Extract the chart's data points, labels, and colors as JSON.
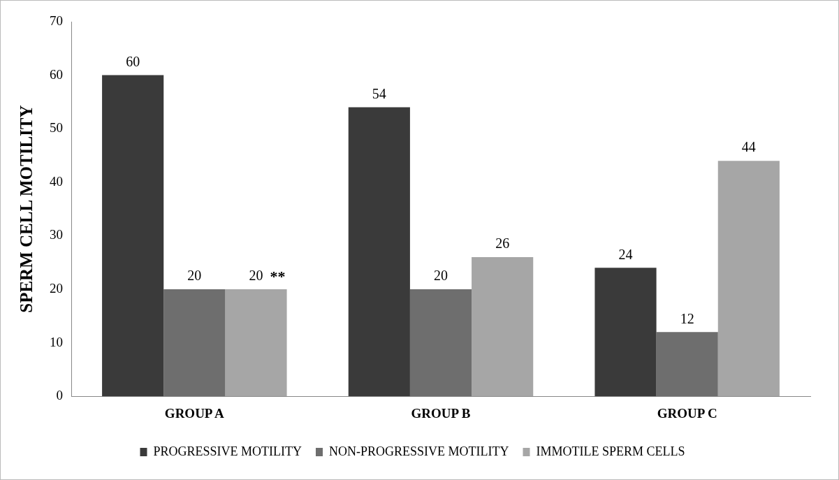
{
  "chart_data": {
    "type": "bar",
    "ylabel": "SPERM CELL MOTILITY",
    "categories": [
      "GROUP A",
      "GROUP B",
      "GROUP C"
    ],
    "series": [
      {
        "name": "PROGRESSIVE MOTILITY",
        "color": "#3a3a3a",
        "values": [
          60,
          54,
          24
        ]
      },
      {
        "name": "NON-PROGRESSIVE MOTILITY",
        "color": "#6e6e6e",
        "values": [
          20,
          20,
          12
        ]
      },
      {
        "name": "IMMOTILE SPERM CELLS",
        "color": "#a6a6a6",
        "values": [
          20,
          26,
          44
        ]
      }
    ],
    "ylim": [
      0,
      70
    ],
    "yticks": [
      0,
      10,
      20,
      30,
      40,
      50,
      60,
      70
    ],
    "grid": false,
    "legend": "bottom",
    "data_labels": true,
    "annotations": [
      "**"
    ]
  }
}
